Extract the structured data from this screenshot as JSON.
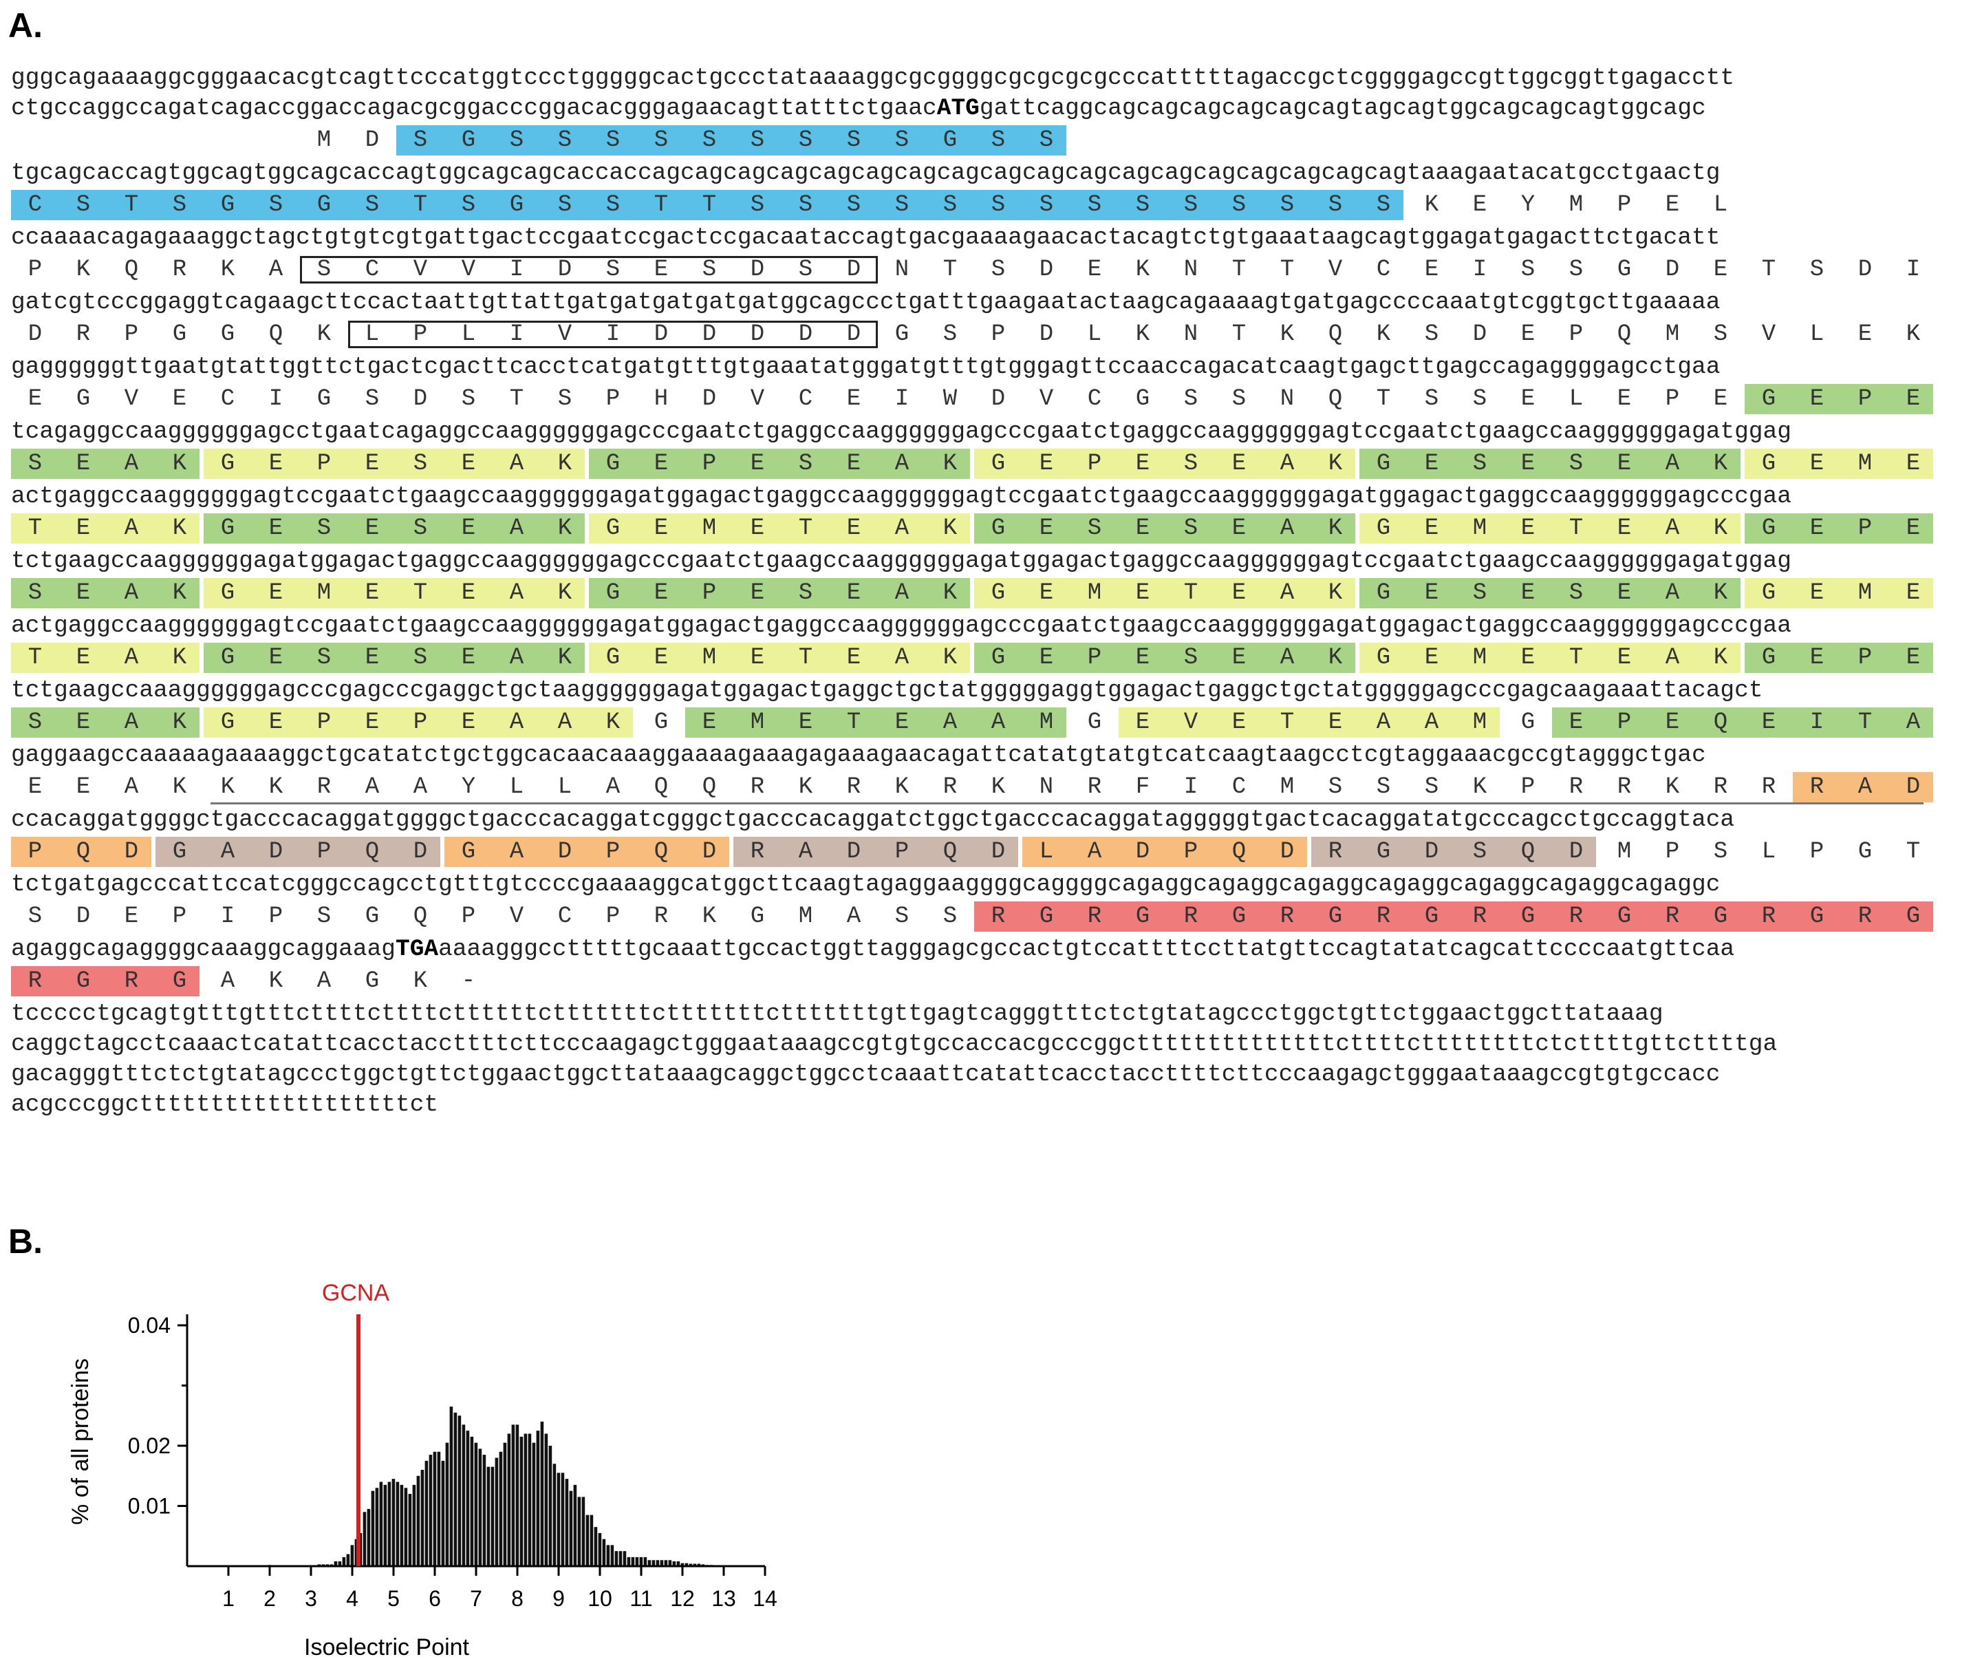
{
  "panel_a": {
    "label": "A.",
    "rows": [
      {
        "dna": "gggcagaaaaggcgggaacacgtcagttcccatggtccctgggggcactgccctataaaaggcgcggggcgcgcgcgcccatttttagaccgctcggggagccgttggcggttgagacctt"
      },
      {
        "dna": "ctgccaggccagatcagaccggaccagacgcggacccggacacgggagaacagttatttctgaac",
        "bold": "ATG",
        "dna_after": "gattcaggcagcagcagcagcagcagtagcagtggcagcagcagtggcagc",
        "aa": "MDSGSSSSSSSSSGSS",
        "aa_start": 64
      },
      {
        "dna": "tgcagcaccagtggcagtggcagcaccagtggcagcagcaccaccagcagcagcagcagcagcagcagcagcagcagcagcagcagcagcagcagcagtaaagaatacatgcctgaactg",
        "aa": "CSTSGSGSTSGSSTTSSSSSSSSSSSSSSKEYMPEL",
        "aa_start": 0
      },
      {
        "dna": "ccaaaacagagaaaggctagctgtgtcgtgattgactccgaatccgactccgacaataccagtgacgaaaagaacactacagtctgtgaaataagcagtggagatgagacttctgacatt",
        "aa": "PKQRKASCVVIDSESDSDNTSDEKNTTVCEISSGDETSDI",
        "aa_start": 0
      },
      {
        "dna": "gatcgtcccggaggtcagaagcttccactaattgttattgatgatgatgatgatggcagccctgatttgaagaatactaagcagaaaagtgatgagccccaaatgtcggtgcttgaaaaa",
        "aa": "DRPGGQKLPLIVIDDDDDGSPDLKNTKQKSDEPQMSVLEK",
        "aa_start": 0
      },
      {
        "dna": "gaggggggttgaatgtattggttctgactcgacttcacctcatgatgtttgtgaaatatgggatgtttgtgggagttccaaccagacatcaagtgagcttgagccagaggggagcctgaa",
        "aa": "EGVECIGSDSTSPHDVCEIWDVCGSSNQTSSELEPEGEPE",
        "aa_start": 0
      },
      {
        "dna": "tcagaggccaaggggggagcctgaatcagaggccaaggggggagcccgaatctgaggccaaggggggagcccgaatctgaggccaaggggggagtccgaatctgaagccaaggggggagatggag",
        "aa": "SEAKGEPESEAKGEPESEAKGEPESEAKGESESEAKGEME",
        "aa_start": 0
      },
      {
        "dna": "actgaggccaaggggggagtccgaatctgaagccaaggggggagatggagactgaggccaaggggggagtccgaatctgaagccaaggggggagatggagactgaggccaaggggggagcccgaa",
        "aa": "TEAKGESESEAKGEMETEAKGESESEAKGEMETEAKGEPE",
        "aa_start": 0
      },
      {
        "dna": "tctgaagccaaggggggagatggagactgaggccaaggggggagcccgaatctgaagccaaggggggagatggagactgaggccaaggggggagtccgaatctgaagccaaggggggagatggag",
        "aa": "SEAKGEMETEAKGEPESEAKGEMETEAKGESESEAKGEME",
        "aa_start": 0
      },
      {
        "dna": "actgaggccaaggggggagtccgaatctgaagccaaggggggagatggagactgaggccaaggggggagcccgaatctgaagccaaggggggagatggagactgaggccaaggggggagcccgaa",
        "aa": "TEAKGESESEAKGEMETEAKGEPESEAKGEMETEAKGEPE",
        "aa_start": 0
      },
      {
        "dna": "tctgaagccaaaggggggagcccgagcccgaggctgctaaggggggagatggagactgaggctgctatgggggaggtggagactgaggctgctatgggggagcccgagcaagaaattacagct",
        "aa": "SEAKGEPEPEAAKGEMETEAAMGEVETEAAMGEPEQEITA",
        "aa_start": 0
      },
      {
        "dna": "gaggaagccaaaaagaaaaggctgcatatctgctggcacaacaaaggaaaagaaagagaaagaacagattcatatgtatgtcatcaagtaagcctcgtaggaaacgccgtagggctgac",
        "aa": "EEAKKKRAAYLLAQQRKRKRKNRFICMSSSKPRRKRRRAD",
        "aa_start": 0
      },
      {
        "dna": "ccacaggatggggctgacccacaggatggggctgacccacaggatcgggctgacccacaggatctggctgacccacaggatagggggtgactcacaggatatgcccagcctgccaggtaca",
        "aa": "PQDGADPQDGADPQDRADPQDLADPQDRGDSQDMPSLPGT",
        "aa_start": 0
      },
      {
        "dna": "tctgatgagcccattccatcgggccagcctgtttgtccccgaaaaggcatggcttcaagtagaggaaggggcaggggcagaggcagaggcagaggcagaggcagaggcagaggcagaggc",
        "aa": "SDEPIPSGQPVCPRKGMASSRGRGRGRGRGRGRGRGRGRG",
        "aa_start": 0
      },
      {
        "dna": "agaggcagaggggcaaaggcaggaaag",
        "bold": "TGA",
        "dna_after": "aaaagggcctttttgcaaattgccactggttagggagcgccactgtccattttccttatgttccagtatatcagcattccccaatgttcaa",
        "aa": "RGRGAKAGK-",
        "aa_start": 0
      },
      {
        "dna": "tccccctgcagtgtttgtttcttttcttttcttttttctttttttctttttttctttttttgttgagtcagggtttctctgtatagccctggctgttctggaactggcttataaag"
      },
      {
        "dna": "caggctagcctcaaactcatattcacctaccttttcttcccaagagctgggaataaagccgtgtgccaccacgcccggcttttttttttttttcttttcttttttttctcttttgttcttttga"
      },
      {
        "dna": "gacagggtttctctgtatagccctggctgttctggaactggcttataaagcaggctggcctcaaattcatattcacctaccttttcttcccaagagctgggaataaagccgtgtgccacc"
      },
      {
        "dna": "acgcccggctttttttttttttttttttct"
      }
    ]
  },
  "panel_b": {
    "label": "B.",
    "chart_data": {
      "type": "bar",
      "title": "",
      "xlabel": "Isoelectric Point",
      "ylabel": "% of all proteins",
      "xlim": [
        0,
        14
      ],
      "ylim": [
        0,
        0.04
      ],
      "xticks": [
        "1",
        "2",
        "3",
        "4",
        "5",
        "6",
        "7",
        "8",
        "9",
        "10",
        "11",
        "12",
        "13",
        "14"
      ],
      "yticks": [
        "0.01",
        "0.02",
        "0.04"
      ],
      "marker": {
        "label": "GCNA",
        "x": 4.15,
        "color": "#d42020"
      },
      "bar_width": 0.1,
      "x": [
        2.0,
        3.2,
        3.3,
        3.4,
        3.5,
        3.6,
        3.7,
        3.8,
        3.9,
        4.0,
        4.1,
        4.2,
        4.3,
        4.4,
        4.5,
        4.6,
        4.7,
        4.8,
        4.9,
        5.0,
        5.1,
        5.2,
        5.3,
        5.4,
        5.5,
        5.6,
        5.7,
        5.8,
        5.9,
        6.0,
        6.1,
        6.2,
        6.3,
        6.4,
        6.5,
        6.6,
        6.7,
        6.8,
        6.9,
        7.0,
        7.1,
        7.2,
        7.3,
        7.4,
        7.5,
        7.6,
        7.7,
        7.8,
        7.9,
        8.0,
        8.1,
        8.2,
        8.3,
        8.4,
        8.5,
        8.6,
        8.7,
        8.8,
        8.9,
        9.0,
        9.1,
        9.2,
        9.3,
        9.4,
        9.5,
        9.6,
        9.7,
        9.8,
        9.9,
        10.0,
        10.1,
        10.2,
        10.3,
        10.4,
        10.5,
        10.6,
        10.7,
        10.8,
        10.9,
        11.0,
        11.1,
        11.2,
        11.3,
        11.4,
        11.5,
        11.6,
        11.7,
        11.8,
        11.9,
        12.0,
        12.1,
        12.2,
        12.3,
        12.4,
        12.5,
        12.6,
        12.7
      ],
      "values": [
        0.0002,
        0.0003,
        0.0003,
        0.0003,
        0.0003,
        0.0008,
        0.0008,
        0.0015,
        0.002,
        0.0035,
        0.0045,
        0.0055,
        0.009,
        0.0095,
        0.0125,
        0.013,
        0.014,
        0.0135,
        0.014,
        0.0145,
        0.014,
        0.0135,
        0.013,
        0.012,
        0.0135,
        0.015,
        0.016,
        0.0175,
        0.0185,
        0.019,
        0.019,
        0.0175,
        0.0205,
        0.0265,
        0.0255,
        0.025,
        0.0235,
        0.0225,
        0.0215,
        0.0205,
        0.0195,
        0.0185,
        0.0165,
        0.0165,
        0.018,
        0.019,
        0.0205,
        0.022,
        0.0235,
        0.0235,
        0.0215,
        0.022,
        0.022,
        0.0205,
        0.0225,
        0.024,
        0.022,
        0.02,
        0.017,
        0.0155,
        0.0155,
        0.0145,
        0.0125,
        0.0135,
        0.0115,
        0.0115,
        0.0085,
        0.0085,
        0.0065,
        0.0055,
        0.0045,
        0.0035,
        0.0035,
        0.0025,
        0.0025,
        0.0025,
        0.0015,
        0.0015,
        0.0015,
        0.0015,
        0.0015,
        0.001,
        0.001,
        0.001,
        0.001,
        0.001,
        0.001,
        0.0008,
        0.0008,
        0.0005,
        0.0005,
        0.0004,
        0.0004,
        0.0004,
        0.0003,
        0.0002,
        0.0002
      ]
    }
  }
}
